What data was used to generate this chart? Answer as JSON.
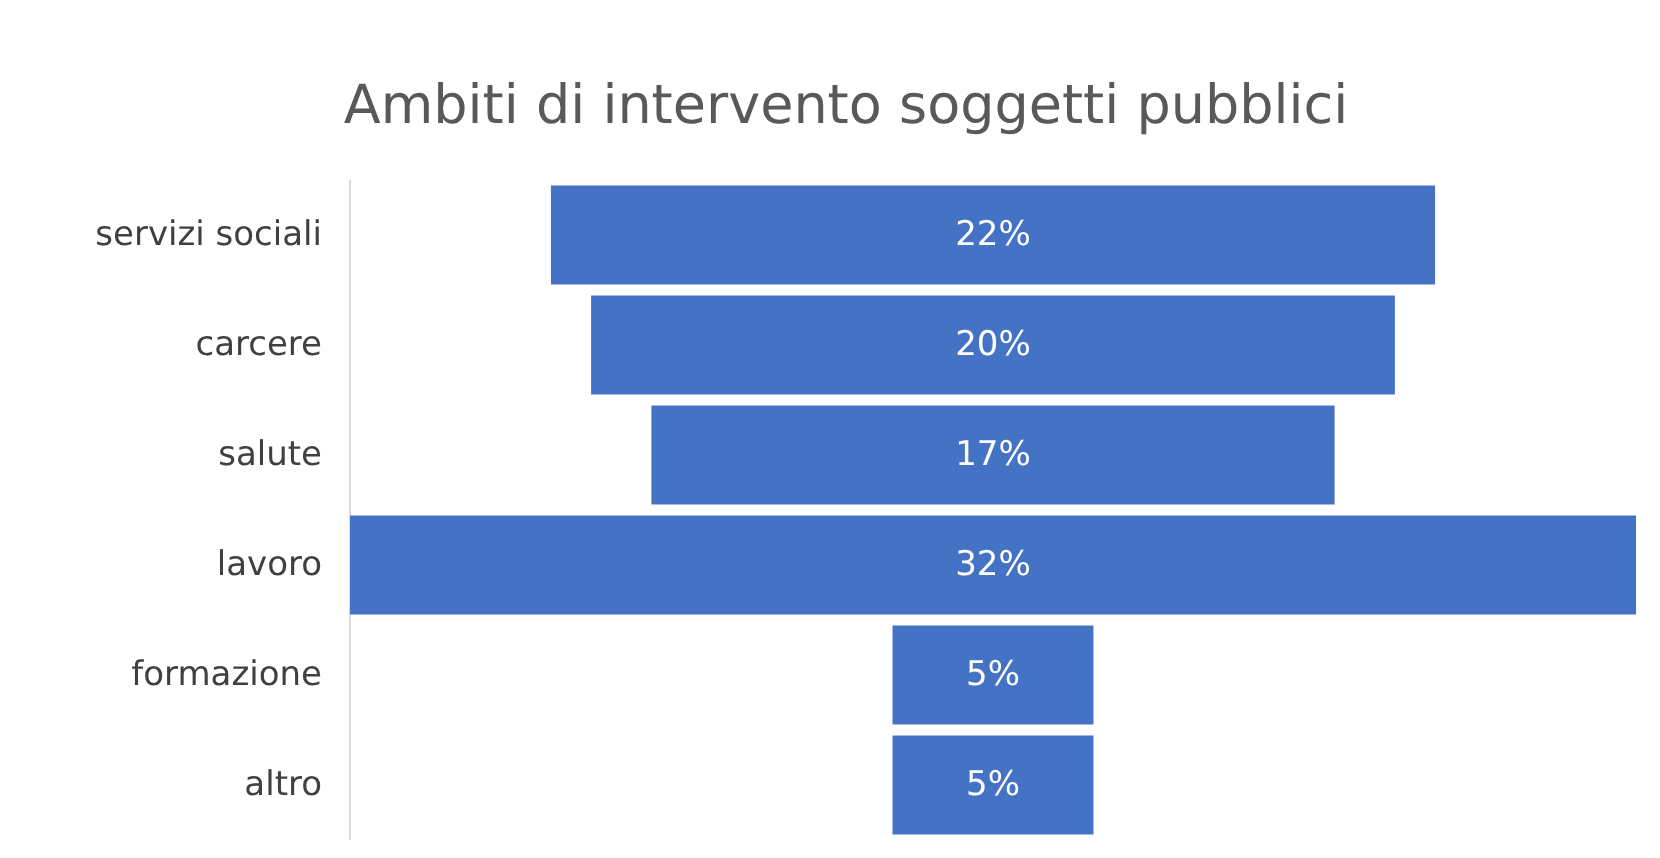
{
  "chart_data": {
    "type": "other",
    "title": "Ambiti di intervento soggetti pubblici",
    "categories": [
      "servizi sociali",
      "carcere",
      "salute",
      "lavoro",
      "formazione",
      "altro"
    ],
    "values": [
      22,
      20,
      17,
      32,
      5,
      5
    ],
    "value_labels": [
      "22%",
      "20%",
      "17%",
      "32%",
      "5%",
      "5%"
    ],
    "color": "#4472c4"
  }
}
